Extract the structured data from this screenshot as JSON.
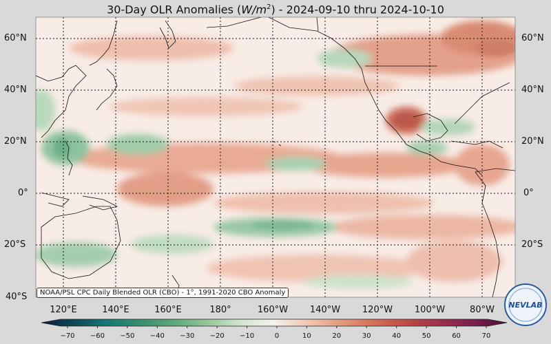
{
  "title": {
    "prefix": "30-Day OLR Anomalies (",
    "unit_var": "W/m",
    "unit_exp": "2",
    "suffix": ") - 2024-09-10 thru 2024-10-10"
  },
  "lat_labels": [
    "60°N",
    "40°N",
    "20°N",
    "0°",
    "20°S",
    "40°S"
  ],
  "lon_labels": [
    "120°E",
    "140°E",
    "160°E",
    "180°",
    "160°W",
    "140°W",
    "120°W",
    "100°W",
    "80°W"
  ],
  "footnote": "NOAA/PSL CPC Daily Blended OLR (CBO) - 1°, 1991-2020 CBO Anomaly",
  "colorbar": {
    "ticks": [
      "−70",
      "−60",
      "−50",
      "−40",
      "−30",
      "−20",
      "−10",
      "0",
      "10",
      "20",
      "30",
      "40",
      "50",
      "60",
      "70"
    ],
    "colors": [
      "#0c1e3c",
      "#0e4a55",
      "#127a74",
      "#3a8f6e",
      "#5ea87a",
      "#96c79a",
      "#d2e6cf",
      "#f6f2ee",
      "#f0c9b3",
      "#e39a7e",
      "#d66e57",
      "#bf4a46",
      "#9c2f4c",
      "#7a1f4e",
      "#4a0f3a"
    ]
  },
  "logo": {
    "text": "NEVLAB"
  },
  "colors": {
    "ocean_neutral": "#f8ece6",
    "positive": "#e8a38c",
    "negative": "#9cc9a6",
    "grid": "#111111",
    "coast": "#111111",
    "background": "#d9d9d9"
  }
}
